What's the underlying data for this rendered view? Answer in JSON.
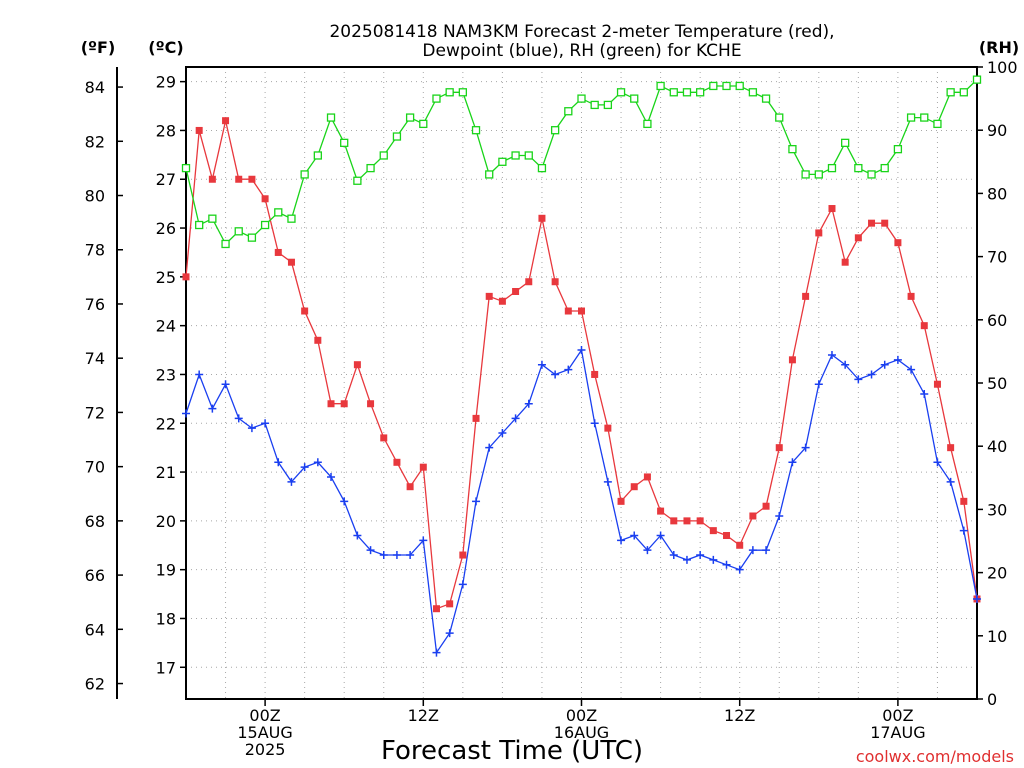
{
  "chart_data": {
    "type": "line",
    "title_line1": "2025081418 NAM3KM Forecast 2-meter Temperature (red),",
    "title_line2": "Dewpoint (blue), RH (green) for KCHE",
    "left_unit_f": "(ºF)",
    "left_unit_c": "(ºC)",
    "right_unit": "(RH)",
    "xlabel": "Forecast Time (UTC)",
    "credit": "coolwx.com/models",
    "x_ticks": [
      {
        "hour": 6,
        "lines": [
          "00Z",
          "15AUG",
          "2025"
        ]
      },
      {
        "hour": 18,
        "lines": [
          "12Z"
        ]
      },
      {
        "hour": 30,
        "lines": [
          "00Z",
          "16AUG"
        ]
      },
      {
        "hour": 42,
        "lines": [
          "12Z"
        ]
      },
      {
        "hour": 54,
        "lines": [
          "00Z",
          "17AUG"
        ]
      }
    ],
    "xlim": [
      0,
      60
    ],
    "celsius_axis": {
      "range": [
        16.35,
        29.3
      ],
      "ticks": [
        17,
        18,
        19,
        20,
        21,
        22,
        23,
        24,
        25,
        26,
        27,
        28,
        29
      ]
    },
    "fahrenheit_axis": {
      "range": [
        61.43,
        84.74
      ],
      "ticks": [
        62,
        64,
        66,
        68,
        70,
        72,
        74,
        76,
        78,
        80,
        82,
        84
      ]
    },
    "rh_axis": {
      "range": [
        0,
        100
      ],
      "ticks": [
        0,
        10,
        20,
        30,
        40,
        50,
        60,
        70,
        80,
        90,
        100
      ]
    },
    "colors": {
      "temperature": "#e8383d",
      "dewpoint": "#1a3ff0",
      "rh": "#19d419"
    },
    "series": [
      {
        "name": "Temperature",
        "units": "C",
        "marker": "filled-square",
        "x": [
          0,
          1,
          2,
          3,
          4,
          5,
          6,
          7,
          8,
          9,
          10,
          11,
          12,
          13,
          14,
          15,
          16,
          17,
          18,
          19,
          20,
          21,
          22,
          23,
          24,
          25,
          26,
          27,
          28,
          29,
          30,
          31,
          32,
          33,
          34,
          35,
          36,
          37,
          38,
          39,
          40,
          41,
          42,
          43,
          44,
          45,
          46,
          47,
          48,
          49,
          50,
          51,
          52,
          53,
          54,
          55,
          56,
          57,
          58,
          59,
          60
        ],
        "values": [
          25.0,
          28.0,
          27.0,
          28.2,
          27.0,
          27.0,
          26.6,
          25.5,
          25.3,
          24.3,
          23.7,
          22.4,
          22.4,
          23.2,
          22.4,
          21.7,
          21.2,
          20.7,
          21.1,
          18.2,
          18.3,
          19.3,
          22.1,
          24.6,
          24.5,
          24.7,
          24.9,
          26.2,
          24.9,
          24.3,
          24.3,
          23.0,
          21.9,
          20.4,
          20.7,
          20.9,
          20.2,
          20.0,
          20.0,
          20.0,
          19.8,
          19.7,
          19.5,
          20.1,
          20.3,
          21.5,
          23.3,
          24.6,
          25.9,
          26.4,
          25.3,
          25.8,
          26.1,
          26.1,
          25.7,
          24.6,
          24.0,
          22.8,
          21.5,
          20.4,
          18.4
        ]
      },
      {
        "name": "Dewpoint",
        "units": "C",
        "marker": "plus",
        "x": [
          0,
          1,
          2,
          3,
          4,
          5,
          6,
          7,
          8,
          9,
          10,
          11,
          12,
          13,
          14,
          15,
          16,
          17,
          18,
          19,
          20,
          21,
          22,
          23,
          24,
          25,
          26,
          27,
          28,
          29,
          30,
          31,
          32,
          33,
          34,
          35,
          36,
          37,
          38,
          39,
          40,
          41,
          42,
          43,
          44,
          45,
          46,
          47,
          48,
          49,
          50,
          51,
          52,
          53,
          54,
          55,
          56,
          57,
          58,
          59,
          60
        ],
        "values": [
          22.2,
          23.0,
          22.3,
          22.8,
          22.1,
          21.9,
          22.0,
          21.2,
          20.8,
          21.1,
          21.2,
          20.9,
          20.4,
          19.7,
          19.4,
          19.3,
          19.3,
          19.3,
          19.6,
          17.3,
          17.7,
          18.7,
          20.4,
          21.5,
          21.8,
          22.1,
          22.4,
          23.2,
          23.0,
          23.1,
          23.5,
          22.0,
          20.8,
          19.6,
          19.7,
          19.4,
          19.7,
          19.3,
          19.2,
          19.3,
          19.2,
          19.1,
          19.0,
          19.4,
          19.4,
          20.1,
          21.2,
          21.5,
          22.8,
          23.4,
          23.2,
          22.9,
          23.0,
          23.2,
          23.3,
          23.1,
          22.6,
          21.2,
          20.8,
          19.8,
          18.4
        ]
      },
      {
        "name": "RH",
        "units": "%",
        "marker": "open-square",
        "x": [
          0,
          1,
          2,
          3,
          4,
          5,
          6,
          7,
          8,
          9,
          10,
          11,
          12,
          13,
          14,
          15,
          16,
          17,
          18,
          19,
          20,
          21,
          22,
          23,
          24,
          25,
          26,
          27,
          28,
          29,
          30,
          31,
          32,
          33,
          34,
          35,
          36,
          37,
          38,
          39,
          40,
          41,
          42,
          43,
          44,
          45,
          46,
          47,
          48,
          49,
          50,
          51,
          52,
          53,
          54,
          55,
          56,
          57,
          58,
          59,
          60
        ],
        "values": [
          84,
          75,
          76,
          72,
          74,
          73,
          75,
          77,
          76,
          83,
          86,
          92,
          88,
          82,
          84,
          86,
          89,
          92,
          91,
          95,
          96,
          96,
          90,
          83,
          85,
          86,
          86,
          84,
          90,
          93,
          95,
          94,
          94,
          96,
          95,
          91,
          97,
          96,
          96,
          96,
          97,
          97,
          97,
          96,
          95,
          92,
          87,
          83,
          83,
          84,
          88,
          84,
          83,
          84,
          87,
          92,
          92,
          91,
          96,
          96,
          98
        ]
      }
    ]
  }
}
